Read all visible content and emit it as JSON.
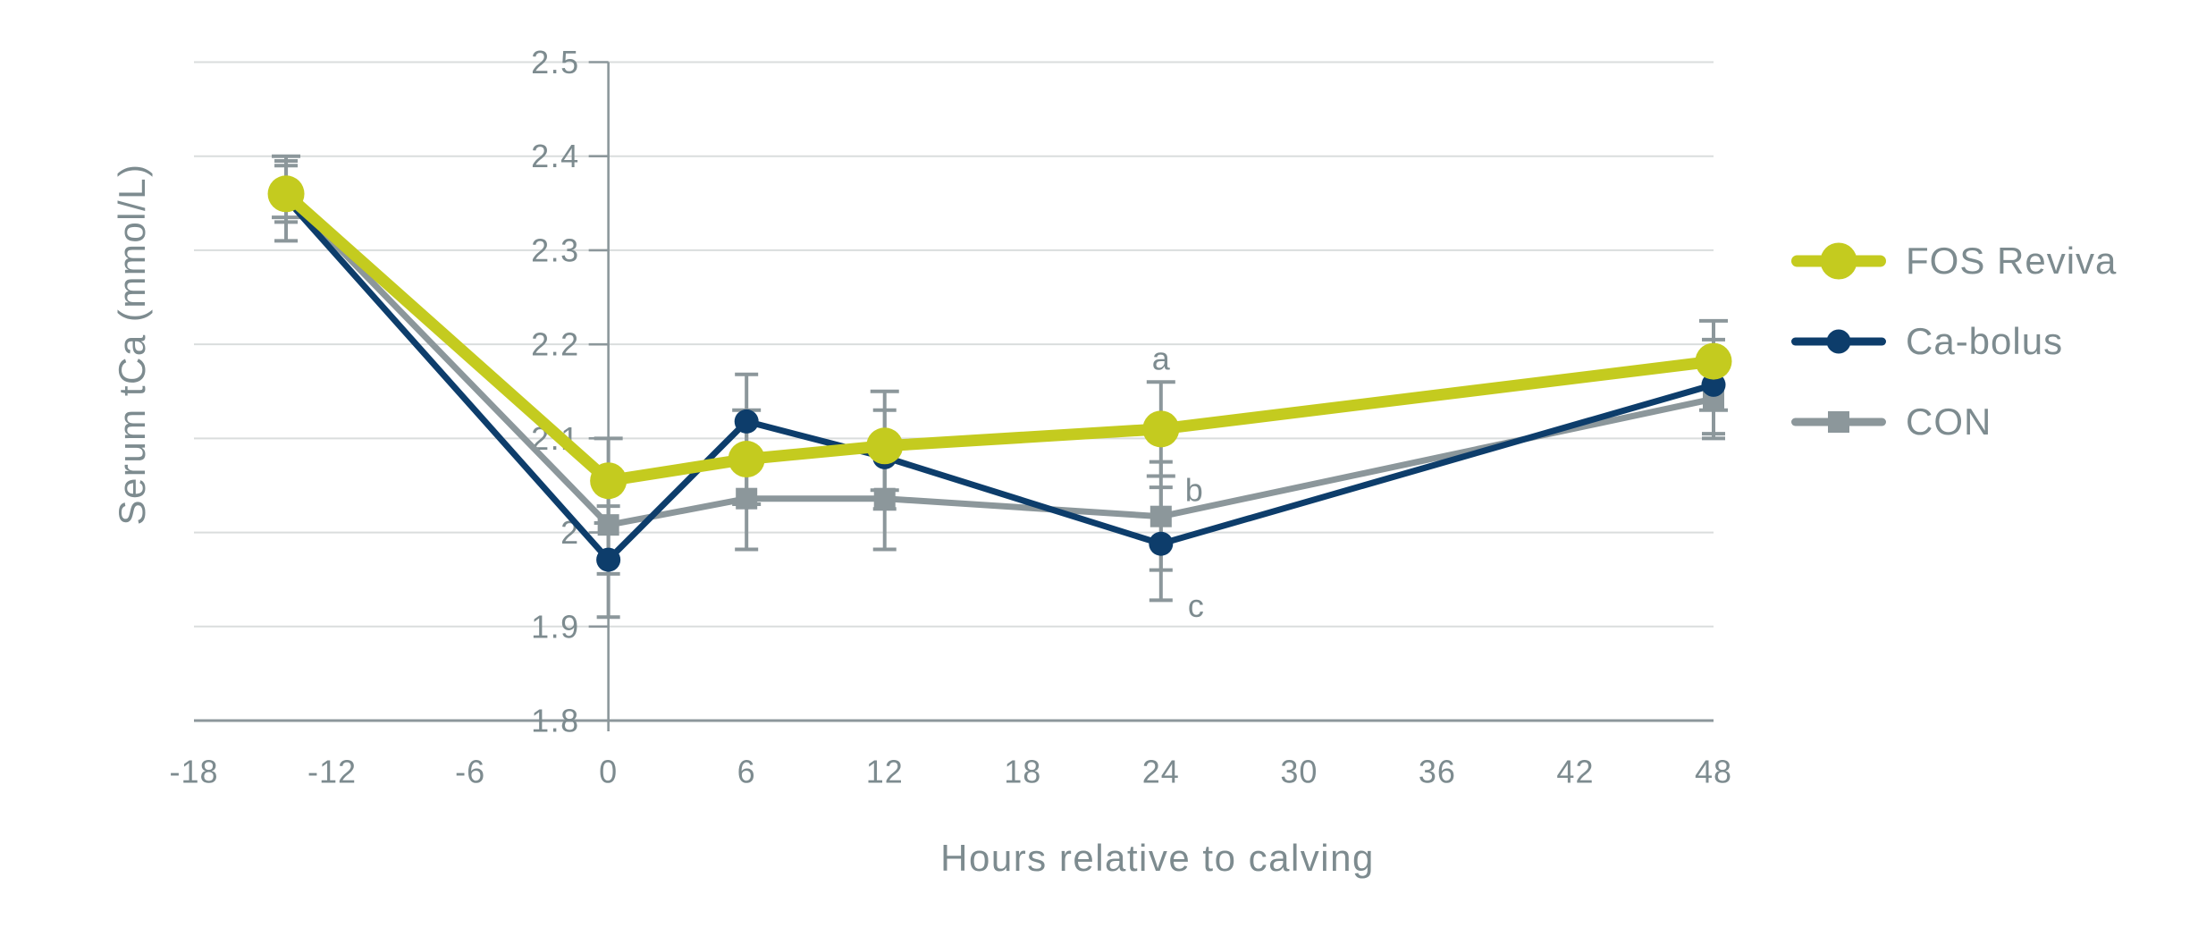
{
  "colors": {
    "background": "#ffffff",
    "gridline": "#dadddd",
    "axis_line": "#8c979b",
    "text": "#7d8b8f",
    "error_bar": "#8c979b",
    "fos_reviva": "#c4cb1f",
    "ca_bolus": "#0d3d6b",
    "con": "#8c979b"
  },
  "chart_data": {
    "type": "line",
    "title": "",
    "xlabel": "Hours relative to calving",
    "ylabel": "Serum tCa (mmol/L)",
    "xlim": [
      -18,
      48
    ],
    "ylim": [
      1.8,
      2.5
    ],
    "grid": "horizontal",
    "legend_position": "right",
    "x_ticks": [
      -18,
      -12,
      -6,
      0,
      6,
      12,
      18,
      24,
      30,
      36,
      42,
      48
    ],
    "x_tick_labels": [
      "-18",
      "-12",
      "-6",
      "0",
      "6",
      "12",
      "18",
      "24",
      "30",
      "36",
      "42",
      "48"
    ],
    "y_ticks": [
      1.8,
      1.9,
      2.0,
      2.1,
      2.2,
      2.3,
      2.4,
      2.5
    ],
    "y_tick_labels": [
      "1.8",
      "1.9",
      "2",
      "2.1",
      "2.2",
      "2.3",
      "2.4",
      "2.5"
    ],
    "series": [
      {
        "name": "CON",
        "color": "#8c979b",
        "marker": "square",
        "marker_size": 24,
        "line_width": 7,
        "x": [
          -14,
          0,
          6,
          12,
          24,
          48
        ],
        "y": [
          2.36,
          2.008,
          2.036,
          2.036,
          2.017,
          2.142
        ],
        "err_low": [
          2.33,
          1.956,
          1.982,
          1.982,
          1.96,
          2.1
        ],
        "err_high": [
          2.395,
          2.058,
          2.088,
          2.088,
          2.075,
          2.19
        ]
      },
      {
        "name": "Ca-bolus",
        "color": "#0d3d6b",
        "marker": "circle",
        "marker_size": 27,
        "line_width": 7,
        "x": [
          -14,
          0,
          6,
          12,
          24,
          48
        ],
        "y": [
          2.355,
          1.971,
          2.118,
          2.08,
          1.988,
          2.157
        ],
        "err_low": [
          2.31,
          1.91,
          2.065,
          2.025,
          1.928,
          2.105
        ],
        "err_high": [
          2.39,
          2.028,
          2.168,
          2.13,
          2.048,
          2.205
        ]
      },
      {
        "name": "FOS Reviva",
        "color": "#c4cb1f",
        "marker": "circle",
        "marker_size": 41,
        "line_width": 13,
        "x": [
          -14,
          0,
          6,
          12,
          24,
          48
        ],
        "y": [
          2.36,
          2.055,
          2.078,
          2.092,
          2.11,
          2.182
        ],
        "err_low": [
          2.335,
          2.01,
          2.03,
          2.045,
          2.06,
          2.13
        ],
        "err_high": [
          2.4,
          2.1,
          2.13,
          2.15,
          2.16,
          2.225
        ]
      }
    ],
    "legend": [
      {
        "label": "FOS Reviva",
        "marker": "circle"
      },
      {
        "label": "Ca-bolus",
        "marker": "circle"
      },
      {
        "label": "CON",
        "marker": "square"
      }
    ],
    "annotations": [
      {
        "text": "a",
        "x": 24,
        "y": 2.185,
        "dx": 0
      },
      {
        "text": "b",
        "x": 24,
        "y": 2.045,
        "dx": 37
      },
      {
        "text": "c",
        "x": 24,
        "y": 1.922,
        "dx": 39
      }
    ]
  }
}
